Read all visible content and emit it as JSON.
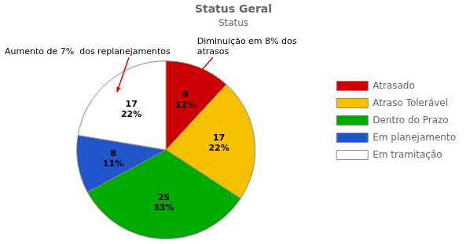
{
  "chart_data": {
    "type": "pie",
    "title": "Status Geral",
    "subtitle": "Status",
    "categories": [
      "Atrasado",
      "Atraso Tolerável",
      "Dentro do Prazo",
      "Em planejamento",
      "Em tramitação"
    ],
    "values": [
      9,
      17,
      25,
      8,
      17
    ],
    "value_labels": [
      "9\n12%",
      "17\n22%",
      "25\n33%",
      "8\n11%",
      "17\n22%"
    ],
    "colors": [
      "#cc0000",
      "#f5c000",
      "#00aa00",
      "#2255cc",
      "#ffffff"
    ],
    "data_labels": true,
    "legend": "right",
    "annotations": [
      {
        "text": "Aumento de 7%  dos replanejamentos",
        "target": "Em tramitação"
      },
      {
        "text": "Diminuição em 8% dos\natrasos",
        "target": "Atrasado"
      }
    ]
  }
}
